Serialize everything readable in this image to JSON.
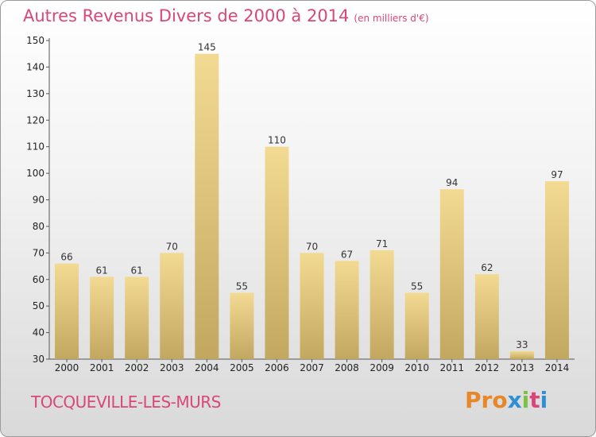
{
  "header": {
    "title": "Autres Revenus Divers de 2000 à 2014",
    "subtitle": "(en milliers d'€)"
  },
  "footer": {
    "commune": "TOCQUEVILLE-LES-MURS",
    "logo": "Proxiti"
  },
  "colors": {
    "title": "#d9477a",
    "bar_light": "#f3da93",
    "bar_dark": "#c2a760",
    "logo_letters": [
      "#e8862a",
      "#e8862a",
      "#e8862a",
      "#2d8fd4",
      "#7cc242",
      "#d9477a",
      "#2d8fd4"
    ]
  },
  "chart_data": {
    "type": "bar",
    "title": "Autres Revenus Divers de 2000 à 2014",
    "ylabel": "",
    "xlabel": "",
    "categories": [
      "2000",
      "2001",
      "2002",
      "2003",
      "2004",
      "2005",
      "2006",
      "2007",
      "2008",
      "2009",
      "2010",
      "2011",
      "2012",
      "2013",
      "2014"
    ],
    "values": [
      66,
      61,
      61,
      70,
      145,
      55,
      110,
      70,
      67,
      71,
      55,
      94,
      62,
      33,
      97
    ],
    "ylim": [
      30,
      150
    ],
    "yticks": [
      30,
      40,
      50,
      60,
      70,
      80,
      90,
      100,
      110,
      120,
      130,
      140,
      150
    ],
    "grid": false,
    "legend": "none"
  }
}
